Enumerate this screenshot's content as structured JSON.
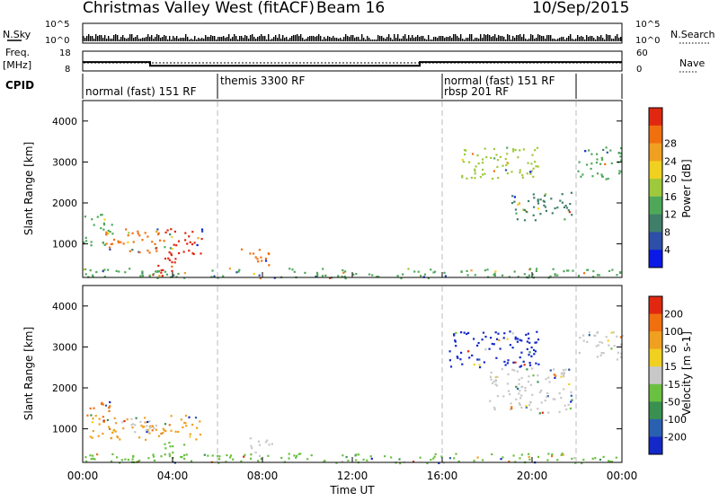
{
  "header": {
    "title": "Christmas Valley West (fitACF)",
    "beam": "Beam 16",
    "date": "10/Sep/2015"
  },
  "nsky_panel": {
    "label": "N.Sky",
    "ticks": [
      "10^5",
      "10^0"
    ],
    "right_ticks": [
      "10^5",
      "10^0"
    ],
    "right_label": "N.Search"
  },
  "freq_panel": {
    "label_line1": "Freq.",
    "label_line2": "[MHz]",
    "ticks": [
      "18",
      "8"
    ],
    "right_ticks": [
      "60",
      "0"
    ],
    "right_label": "Nave",
    "freq_steps": [
      [
        0,
        12.5
      ],
      [
        3,
        10.6
      ],
      [
        15,
        12.5
      ],
      [
        24,
        12.5
      ]
    ]
  },
  "cpid_panel": {
    "label": "CPID",
    "modes": [
      {
        "name": "normal (fast) 151 RF",
        "start": 0,
        "end": 6
      },
      {
        "name": "themis 3300 RF",
        "start": 6,
        "end": 16
      },
      {
        "name": "rbsp 201 RF",
        "start": 16,
        "end": 16
      },
      {
        "name": "normal (fast) 151 RF",
        "start": 16,
        "end": 21.9
      }
    ]
  },
  "chart_data": [
    {
      "type": "heatmap",
      "ylabel": "Slant Range [km]",
      "ylim": [
        180,
        4500
      ],
      "xlim": [
        0,
        24
      ],
      "yticks": [
        "1000",
        "2000",
        "3000",
        "4000"
      ],
      "colorbar": {
        "label": "Power [dB]",
        "ticks": [
          "4",
          "8",
          "12",
          "16",
          "20",
          "24",
          "28"
        ],
        "colors": [
          "#0a19e6",
          "#2d4fa8",
          "#3f7f6a",
          "#4fa85a",
          "#9fc93c",
          "#f0d020",
          "#f0a020",
          "#f07010",
          "#e02810"
        ]
      },
      "regions": [
        {
          "t0": 0.0,
          "t1": 1.3,
          "r0": 950,
          "r1": 1750,
          "color": "#4fa85a"
        },
        {
          "t0": 1.0,
          "t1": 3.5,
          "r0": 800,
          "r1": 1400,
          "color": "#f07010"
        },
        {
          "t0": 3.2,
          "t1": 5.3,
          "r0": 700,
          "r1": 1400,
          "color": "#e02810"
        },
        {
          "t0": 3.0,
          "t1": 4.2,
          "r0": 200,
          "r1": 700,
          "color": "#e02810"
        },
        {
          "t0": 7.0,
          "t1": 8.4,
          "r0": 500,
          "r1": 900,
          "color": "#f07010"
        },
        {
          "t0": 16.8,
          "t1": 20.3,
          "r0": 2600,
          "r1": 3400,
          "color": "#9fc93c"
        },
        {
          "t0": 19.0,
          "t1": 21.8,
          "r0": 1600,
          "r1": 2300,
          "color": "#3f7f6a"
        },
        {
          "t0": 22.0,
          "t1": 24.0,
          "r0": 2600,
          "r1": 3400,
          "color": "#4fa85a"
        },
        {
          "t0": 0.0,
          "t1": 24.0,
          "r0": 180,
          "r1": 420,
          "color": "#4fa85a"
        }
      ]
    },
    {
      "type": "heatmap",
      "ylabel": "Slant Range [km]",
      "ylim": [
        180,
        4500
      ],
      "xlim": [
        0,
        24
      ],
      "yticks": [
        "1000",
        "2000",
        "3000",
        "4000"
      ],
      "xticks": [
        "00:00",
        "04:00",
        "08:00",
        "12:00",
        "16:00",
        "20:00",
        "00:00"
      ],
      "xlabel": "Time UT",
      "colorbar": {
        "label": "Velocity [m s-1]",
        "ticks": [
          "200",
          "100",
          "50",
          "15",
          "-15",
          "-50",
          "-100",
          "-200"
        ],
        "colors": [
          "#1428c8",
          "#2a60b0",
          "#3a9050",
          "#6ac040",
          "#c8c8c8",
          "#f0d020",
          "#f0a020",
          "#f07010",
          "#e02810"
        ]
      },
      "regions": [
        {
          "t0": 0.0,
          "t1": 1.2,
          "r0": 1300,
          "r1": 1750,
          "color": "#f07010"
        },
        {
          "t0": 0.3,
          "t1": 5.3,
          "r0": 750,
          "r1": 1350,
          "color": "#f0a020"
        },
        {
          "t0": 2.0,
          "t1": 3.5,
          "r0": 900,
          "r1": 1300,
          "color": "#c8c8c8"
        },
        {
          "t0": 3.5,
          "t1": 4.5,
          "r0": 300,
          "r1": 700,
          "color": "#6ac040"
        },
        {
          "t0": 7.4,
          "t1": 8.4,
          "r0": 400,
          "r1": 800,
          "color": "#c8c8c8"
        },
        {
          "t0": 16.3,
          "t1": 20.3,
          "r0": 2500,
          "r1": 3400,
          "color": "#1428c8"
        },
        {
          "t0": 18.0,
          "t1": 21.8,
          "r0": 1400,
          "r1": 2500,
          "color": "#c8c8c8"
        },
        {
          "t0": 22.0,
          "t1": 24.0,
          "r0": 2700,
          "r1": 3400,
          "color": "#c8c8c8"
        },
        {
          "t0": 0.0,
          "t1": 24.0,
          "r0": 180,
          "r1": 420,
          "color": "#6ac040"
        }
      ]
    }
  ]
}
